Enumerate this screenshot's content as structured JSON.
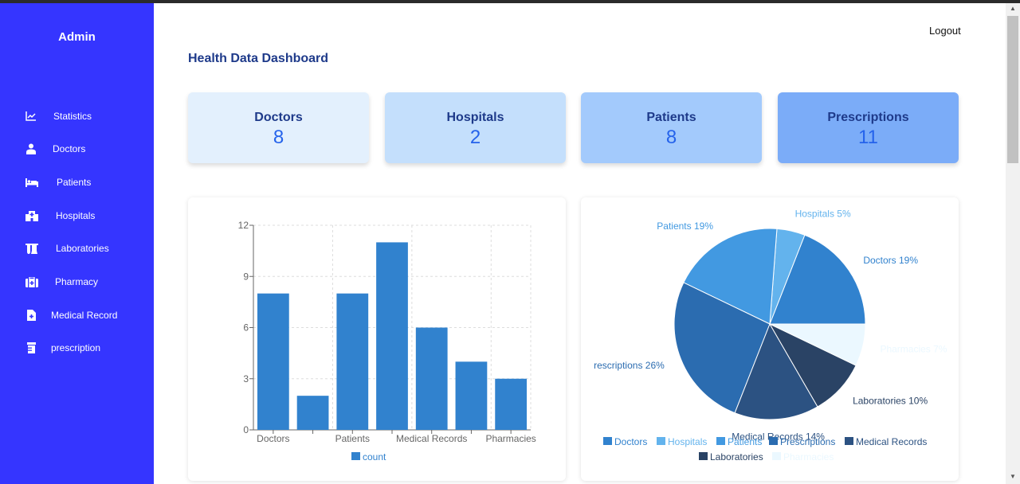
{
  "sidebar": {
    "brand": "Admin",
    "items": [
      {
        "label": "Statistics",
        "icon": "chart-line-icon"
      },
      {
        "label": "Doctors",
        "icon": "doctor-icon"
      },
      {
        "label": "Patients",
        "icon": "bed-icon"
      },
      {
        "label": "Hospitals",
        "icon": "hospital-icon"
      },
      {
        "label": "Laboratories",
        "icon": "flask-icon"
      },
      {
        "label": "Pharmacy",
        "icon": "medkit-icon"
      },
      {
        "label": "Medical Record",
        "icon": "file-medical-icon"
      },
      {
        "label": "prescription",
        "icon": "prescription-bottle-icon"
      }
    ]
  },
  "header": {
    "logout": "Logout",
    "title": "Health Data Dashboard"
  },
  "cards": [
    {
      "title": "Doctors",
      "value": "8",
      "color": "#e3f0fd"
    },
    {
      "title": "Hospitals",
      "value": "2",
      "color": "#c4dffc"
    },
    {
      "title": "Patients",
      "value": "8",
      "color": "#a3cafc"
    },
    {
      "title": "Prescriptions",
      "value": "11",
      "color": "#7bacf8"
    }
  ],
  "chart_data": [
    {
      "type": "bar",
      "categories": [
        "Doctors",
        "Hospitals",
        "Patients",
        "Prescriptions",
        "Medical Records",
        "Laboratories",
        "Pharmacies"
      ],
      "visible_tick_labels": [
        "Doctors",
        "Patients",
        "Medical Records",
        "Pharmacies"
      ],
      "series": [
        {
          "name": "count",
          "values": [
            8,
            2,
            8,
            11,
            6,
            4,
            3
          ],
          "color": "#3182ce"
        }
      ],
      "yticks": [
        "0",
        "3",
        "6",
        "9",
        "12"
      ],
      "ylim": [
        0,
        12
      ],
      "grid": true,
      "legend": "bottom"
    },
    {
      "type": "pie",
      "slices": [
        {
          "name": "Doctors",
          "value": 8,
          "label": "Doctors 19%",
          "color": "#3182ce"
        },
        {
          "name": "Hospitals",
          "value": 2,
          "label": "Hospitals 5%",
          "color": "#63b3ed"
        },
        {
          "name": "Patients",
          "value": 8,
          "label": "Patients 19%",
          "color": "#4299e1"
        },
        {
          "name": "Prescriptions",
          "value": 11,
          "label": "rescriptions 26%",
          "color": "#2b6cb0"
        },
        {
          "name": "Medical Records",
          "value": 6,
          "label": "Medical Records 14%",
          "color": "#2c5282"
        },
        {
          "name": "Laboratories",
          "value": 4,
          "label": "Laboratories 10%",
          "color": "#2a4365"
        },
        {
          "name": "Pharmacies",
          "value": 3,
          "label": "Pharmacies 7%",
          "color": "#ebf8ff"
        }
      ],
      "legend": "bottom"
    }
  ]
}
